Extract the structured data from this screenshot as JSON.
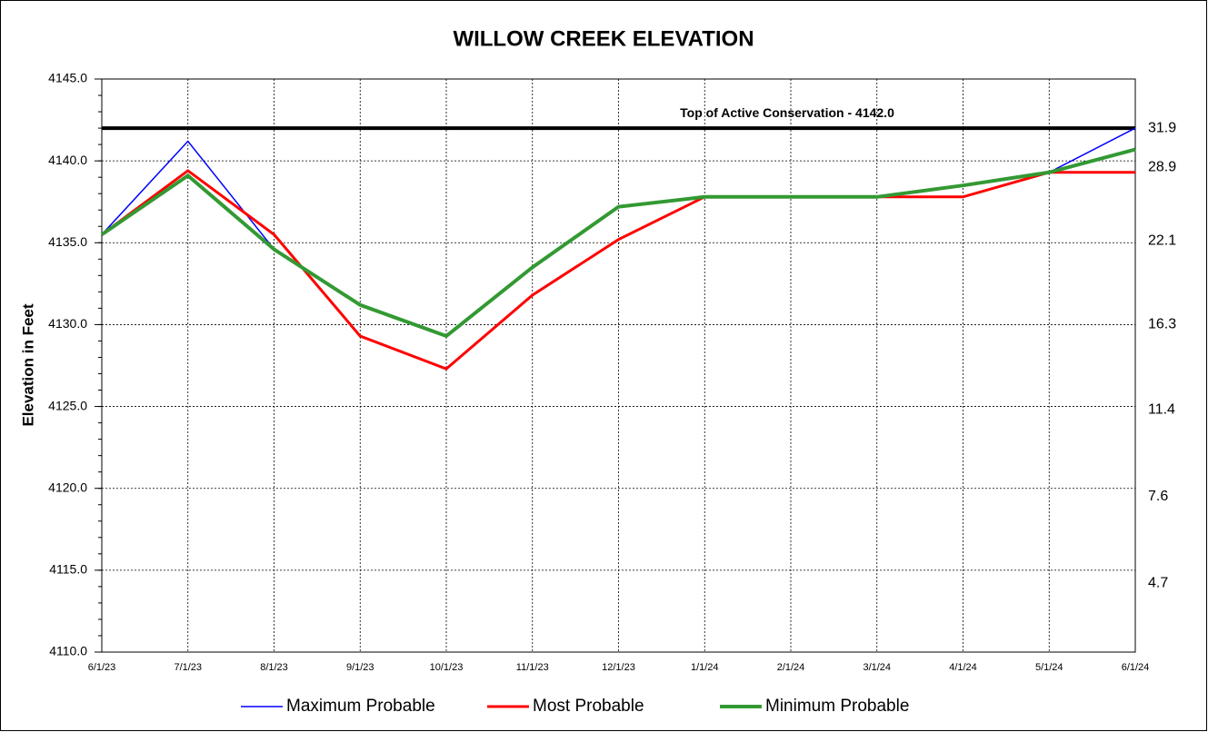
{
  "chart_data": {
    "type": "line",
    "title": "WILLOW CREEK ELEVATION",
    "ylabel": "Elevation in Feet",
    "categories": [
      "6/1/23",
      "7/1/23",
      "8/1/23",
      "9/1/23",
      "10/1/23",
      "11/1/23",
      "12/1/23",
      "1/1/24",
      "2/1/24",
      "3/1/24",
      "4/1/24",
      "5/1/24",
      "6/1/24"
    ],
    "ylim": [
      4110,
      4145
    ],
    "yticks": [
      {
        "value": 4110,
        "label": "4110.0"
      },
      {
        "value": 4115,
        "label": "4115.0"
      },
      {
        "value": 4120,
        "label": "4120.0"
      },
      {
        "value": 4125,
        "label": "4125.0"
      },
      {
        "value": 4130,
        "label": "4130.0"
      },
      {
        "value": 4135,
        "label": "4135.0"
      },
      {
        "value": 4140,
        "label": "4140.0"
      },
      {
        "value": 4145,
        "label": "4145.0"
      }
    ],
    "grid": true,
    "legend": "bottom",
    "storage_labels": [
      {
        "elevation": 4142.0,
        "storage": 31.9
      },
      {
        "elevation": 4139.6,
        "storage": 28.9
      },
      {
        "elevation": 4135.1,
        "storage": 22.1
      },
      {
        "elevation": 4130.0,
        "storage": 16.3
      },
      {
        "elevation": 4124.8,
        "storage": 11.4
      },
      {
        "elevation": 4119.5,
        "storage": 7.6
      },
      {
        "elevation": 4114.2,
        "storage": 4.7
      }
    ],
    "reference_line": {
      "value": 4142.0,
      "label": "Top of Active Conservation - 4142.0",
      "color": "#000000"
    },
    "series": [
      {
        "name": "Maximum Probable",
        "color": "#0000ff",
        "width": 1.5,
        "values": [
          4135.5,
          4141.2,
          4134.6,
          4131.2,
          4129.3,
          4133.5,
          4137.2,
          4137.8,
          4137.8,
          4137.8,
          4138.5,
          4139.3,
          4142.0
        ]
      },
      {
        "name": "Most Probable",
        "color": "#ff0000",
        "width": 3,
        "values": [
          4135.5,
          4139.4,
          4135.5,
          4129.3,
          4127.3,
          4131.8,
          4135.2,
          4137.8,
          4137.8,
          4137.8,
          4137.8,
          4139.3,
          4139.3
        ]
      },
      {
        "name": "Minimum Probable",
        "color": "#339933",
        "width": 4,
        "values": [
          4135.5,
          4139.1,
          4134.6,
          4131.2,
          4129.3,
          4133.5,
          4137.2,
          4137.8,
          4137.8,
          4137.8,
          4138.5,
          4139.3,
          4140.7
        ]
      }
    ]
  }
}
